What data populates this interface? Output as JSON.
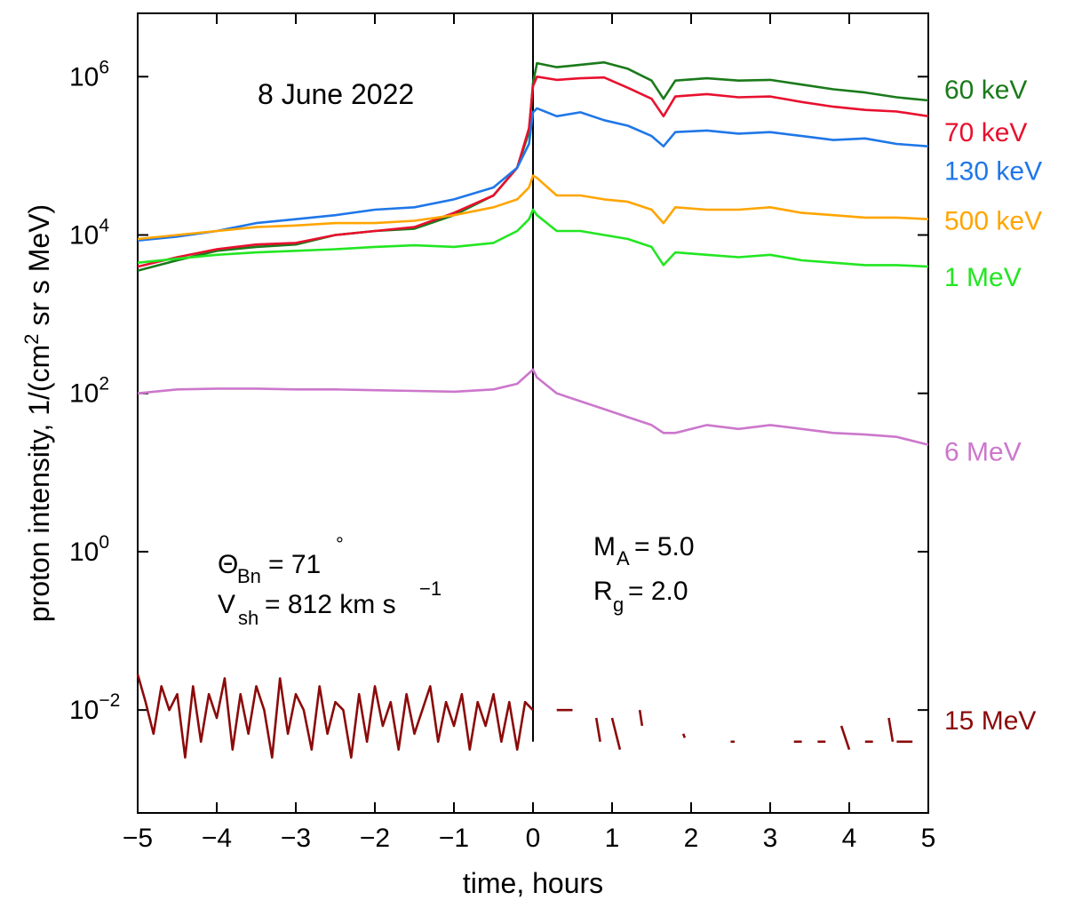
{
  "chart_data": {
    "type": "line",
    "title": "8 June 2022",
    "xlabel": "time, hours",
    "ylabel": {
      "main": "proton intensity,  1/(cm",
      "sup": "2",
      "tail": " sr s MeV)"
    },
    "xlim": [
      -5,
      5
    ],
    "ylim_log10": [
      -3.3,
      6.8
    ],
    "yscale": "log",
    "x_ticks": [
      -5,
      -4,
      -3,
      -2,
      -1,
      0,
      1,
      2,
      3,
      4,
      5
    ],
    "x_tick_labels": [
      "−5",
      "−4",
      "−3",
      "−2",
      "−1",
      "0",
      "1",
      "2",
      "3",
      "4",
      "5"
    ],
    "y_ticks_exp": [
      6,
      4,
      2,
      0,
      -2
    ],
    "y_tick_labels": [
      {
        "base": "10",
        "exp": "6"
      },
      {
        "base": "10",
        "exp": "4"
      },
      {
        "base": "10",
        "exp": "2"
      },
      {
        "base": "10",
        "exp": "0"
      },
      {
        "base": "10",
        "exp": "−2"
      }
    ],
    "shock_line_x": 0,
    "annotations": {
      "theta": {
        "sym": "Θ",
        "sub": "Bn",
        "text": "= 71",
        "deg": "°"
      },
      "vsh": {
        "sym": "V",
        "sub": "sh",
        "text": "= 812 km s",
        "sup": "−1"
      },
      "ma": {
        "sym": "M",
        "sub": "A",
        "text": "= 5.0"
      },
      "rg": {
        "sym": "R",
        "sub": "g",
        "text": "= 2.0"
      }
    },
    "series": [
      {
        "name": "60 keV",
        "color": "#1a7a1a",
        "points": [
          [
            -5,
            3.55
          ],
          [
            -4.5,
            3.68
          ],
          [
            -4,
            3.8
          ],
          [
            -3.5,
            3.85
          ],
          [
            -3,
            3.88
          ],
          [
            -2.5,
            4.0
          ],
          [
            -2,
            4.05
          ],
          [
            -1.5,
            4.08
          ],
          [
            -1,
            4.25
          ],
          [
            -0.5,
            4.5
          ],
          [
            -0.2,
            4.85
          ],
          [
            -0.05,
            5.3
          ],
          [
            0,
            5.92
          ],
          [
            0.05,
            6.17
          ],
          [
            0.3,
            6.12
          ],
          [
            0.6,
            6.15
          ],
          [
            0.9,
            6.18
          ],
          [
            1.2,
            6.1
          ],
          [
            1.5,
            5.95
          ],
          [
            1.65,
            5.72
          ],
          [
            1.8,
            5.95
          ],
          [
            2.2,
            5.98
          ],
          [
            2.6,
            5.95
          ],
          [
            3.0,
            5.96
          ],
          [
            3.4,
            5.9
          ],
          [
            3.8,
            5.84
          ],
          [
            4.2,
            5.8
          ],
          [
            4.6,
            5.74
          ],
          [
            5.0,
            5.7
          ]
        ]
      },
      {
        "name": "70 keV",
        "color": "#e8102e",
        "points": [
          [
            -5,
            3.6
          ],
          [
            -4.5,
            3.72
          ],
          [
            -4,
            3.82
          ],
          [
            -3.5,
            3.88
          ],
          [
            -3,
            3.9
          ],
          [
            -2.5,
            4.0
          ],
          [
            -2,
            4.05
          ],
          [
            -1.5,
            4.1
          ],
          [
            -1,
            4.28
          ],
          [
            -0.5,
            4.5
          ],
          [
            -0.2,
            4.85
          ],
          [
            -0.05,
            5.35
          ],
          [
            0,
            5.88
          ],
          [
            0.05,
            6.0
          ],
          [
            0.3,
            5.96
          ],
          [
            0.6,
            5.98
          ],
          [
            0.9,
            5.99
          ],
          [
            1.2,
            5.86
          ],
          [
            1.5,
            5.72
          ],
          [
            1.65,
            5.5
          ],
          [
            1.8,
            5.75
          ],
          [
            2.2,
            5.78
          ],
          [
            2.6,
            5.74
          ],
          [
            3.0,
            5.75
          ],
          [
            3.4,
            5.68
          ],
          [
            3.8,
            5.62
          ],
          [
            4.2,
            5.58
          ],
          [
            4.6,
            5.56
          ],
          [
            5.0,
            5.5
          ]
        ]
      },
      {
        "name": "130 keV",
        "color": "#1f77e8",
        "points": [
          [
            -5,
            3.93
          ],
          [
            -4.5,
            3.98
          ],
          [
            -4,
            4.05
          ],
          [
            -3.5,
            4.15
          ],
          [
            -3,
            4.2
          ],
          [
            -2.5,
            4.25
          ],
          [
            -2,
            4.32
          ],
          [
            -1.5,
            4.35
          ],
          [
            -1,
            4.45
          ],
          [
            -0.5,
            4.6
          ],
          [
            -0.2,
            4.85
          ],
          [
            -0.05,
            5.15
          ],
          [
            0,
            5.55
          ],
          [
            0.05,
            5.6
          ],
          [
            0.3,
            5.5
          ],
          [
            0.6,
            5.55
          ],
          [
            0.9,
            5.45
          ],
          [
            1.2,
            5.38
          ],
          [
            1.5,
            5.25
          ],
          [
            1.65,
            5.12
          ],
          [
            1.8,
            5.3
          ],
          [
            2.2,
            5.32
          ],
          [
            2.6,
            5.28
          ],
          [
            3.0,
            5.3
          ],
          [
            3.4,
            5.25
          ],
          [
            3.8,
            5.2
          ],
          [
            4.2,
            5.22
          ],
          [
            4.6,
            5.15
          ],
          [
            5.0,
            5.12
          ]
        ]
      },
      {
        "name": "500 keV",
        "color": "#ffa500",
        "points": [
          [
            -5,
            3.95
          ],
          [
            -4.5,
            4.0
          ],
          [
            -4,
            4.05
          ],
          [
            -3.5,
            4.1
          ],
          [
            -3,
            4.12
          ],
          [
            -2.5,
            4.15
          ],
          [
            -2,
            4.15
          ],
          [
            -1.5,
            4.18
          ],
          [
            -1,
            4.25
          ],
          [
            -0.5,
            4.35
          ],
          [
            -0.2,
            4.45
          ],
          [
            -0.05,
            4.6
          ],
          [
            0,
            4.75
          ],
          [
            0.05,
            4.72
          ],
          [
            0.3,
            4.5
          ],
          [
            0.6,
            4.5
          ],
          [
            0.9,
            4.45
          ],
          [
            1.2,
            4.42
          ],
          [
            1.5,
            4.32
          ],
          [
            1.65,
            4.15
          ],
          [
            1.8,
            4.35
          ],
          [
            2.2,
            4.32
          ],
          [
            2.6,
            4.32
          ],
          [
            3.0,
            4.35
          ],
          [
            3.4,
            4.28
          ],
          [
            3.8,
            4.25
          ],
          [
            4.2,
            4.22
          ],
          [
            4.6,
            4.22
          ],
          [
            5.0,
            4.2
          ]
        ]
      },
      {
        "name": "1 MeV",
        "color": "#22e622",
        "points": [
          [
            -5,
            3.65
          ],
          [
            -4.5,
            3.7
          ],
          [
            -4,
            3.75
          ],
          [
            -3.5,
            3.78
          ],
          [
            -3,
            3.8
          ],
          [
            -2.5,
            3.82
          ],
          [
            -2,
            3.85
          ],
          [
            -1.5,
            3.87
          ],
          [
            -1,
            3.85
          ],
          [
            -0.5,
            3.9
          ],
          [
            -0.2,
            4.05
          ],
          [
            -0.05,
            4.2
          ],
          [
            0,
            4.32
          ],
          [
            0.05,
            4.25
          ],
          [
            0.3,
            4.05
          ],
          [
            0.6,
            4.05
          ],
          [
            0.9,
            4.0
          ],
          [
            1.2,
            3.95
          ],
          [
            1.5,
            3.85
          ],
          [
            1.65,
            3.62
          ],
          [
            1.8,
            3.78
          ],
          [
            2.2,
            3.75
          ],
          [
            2.6,
            3.72
          ],
          [
            3.0,
            3.75
          ],
          [
            3.4,
            3.68
          ],
          [
            3.8,
            3.65
          ],
          [
            4.2,
            3.62
          ],
          [
            4.6,
            3.62
          ],
          [
            5.0,
            3.6
          ]
        ]
      },
      {
        "name": "6 MeV",
        "color": "#cc77cc",
        "points": [
          [
            -5,
            2.0
          ],
          [
            -4.5,
            2.05
          ],
          [
            -4,
            2.06
          ],
          [
            -3.5,
            2.06
          ],
          [
            -3,
            2.05
          ],
          [
            -2.5,
            2.05
          ],
          [
            -2,
            2.04
          ],
          [
            -1.5,
            2.03
          ],
          [
            -1,
            2.02
          ],
          [
            -0.5,
            2.05
          ],
          [
            -0.2,
            2.12
          ],
          [
            0,
            2.3
          ],
          [
            0.05,
            2.2
          ],
          [
            0.3,
            2.0
          ],
          [
            0.6,
            1.9
          ],
          [
            0.9,
            1.8
          ],
          [
            1.2,
            1.7
          ],
          [
            1.5,
            1.6
          ],
          [
            1.65,
            1.5
          ],
          [
            1.8,
            1.5
          ],
          [
            2.2,
            1.6
          ],
          [
            2.6,
            1.55
          ],
          [
            3.0,
            1.6
          ],
          [
            3.4,
            1.55
          ],
          [
            3.8,
            1.5
          ],
          [
            4.2,
            1.48
          ],
          [
            4.6,
            1.45
          ],
          [
            5.0,
            1.35
          ]
        ]
      },
      {
        "name": "15 MeV",
        "color": "#8b0a0a",
        "points": [
          [
            -5,
            -1.55
          ],
          [
            -4.9,
            -1.9
          ],
          [
            -4.8,
            -2.3
          ],
          [
            -4.7,
            -1.7
          ],
          [
            -4.6,
            -2.0
          ],
          [
            -4.5,
            -1.8
          ],
          [
            -4.4,
            -2.6
          ],
          [
            -4.3,
            -1.7
          ],
          [
            -4.2,
            -2.4
          ],
          [
            -4.1,
            -1.8
          ],
          [
            -4.0,
            -2.1
          ],
          [
            -3.9,
            -1.6
          ],
          [
            -3.8,
            -2.5
          ],
          [
            -3.7,
            -1.8
          ],
          [
            -3.6,
            -2.3
          ],
          [
            -3.5,
            -1.7
          ],
          [
            -3.4,
            -2.0
          ],
          [
            -3.3,
            -2.6
          ],
          [
            -3.2,
            -1.6
          ],
          [
            -3.1,
            -2.3
          ],
          [
            -3.0,
            -1.8
          ],
          [
            -2.9,
            -2.0
          ],
          [
            -2.8,
            -2.5
          ],
          [
            -2.7,
            -1.7
          ],
          [
            -2.6,
            -2.3
          ],
          [
            -2.5,
            -1.9
          ],
          [
            -2.4,
            -2.0
          ],
          [
            -2.3,
            -2.6
          ],
          [
            -2.2,
            -1.8
          ],
          [
            -2.1,
            -2.4
          ],
          [
            -2.0,
            -1.7
          ],
          [
            -1.9,
            -2.2
          ],
          [
            -1.8,
            -1.9
          ],
          [
            -1.7,
            -2.5
          ],
          [
            -1.6,
            -1.8
          ],
          [
            -1.5,
            -2.3
          ],
          [
            -1.4,
            -2.0
          ],
          [
            -1.3,
            -1.7
          ],
          [
            -1.2,
            -2.4
          ],
          [
            -1.1,
            -1.9
          ],
          [
            -1.0,
            -2.2
          ],
          [
            -0.9,
            -1.8
          ],
          [
            -0.8,
            -2.5
          ],
          [
            -0.7,
            -1.9
          ],
          [
            -0.6,
            -2.2
          ],
          [
            -0.5,
            -1.8
          ],
          [
            -0.4,
            -2.4
          ],
          [
            -0.3,
            -1.9
          ],
          [
            -0.2,
            -2.5
          ],
          [
            -0.1,
            -1.9
          ],
          [
            0.0,
            -2.0
          ]
        ]
      }
    ]
  }
}
